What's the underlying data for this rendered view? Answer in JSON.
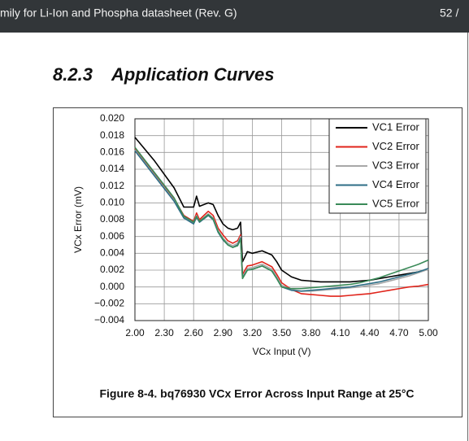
{
  "toolbar": {
    "title": "mily for Li-Ion and Phospha datasheet (Rev. G)",
    "page": "52 /"
  },
  "section": {
    "number": "8.2.3",
    "title": "Application Curves"
  },
  "chart_data": {
    "type": "line",
    "caption": "Figure 8-4. bq76930 VCx Error Across Input Range at 25°C",
    "xlabel": "VCx Input (V)",
    "ylabel": "VCx Error (mV)",
    "x": [
      2.0,
      2.2,
      2.4,
      2.5,
      2.6,
      2.63,
      2.66,
      2.75,
      2.8,
      2.85,
      2.9,
      2.95,
      3.0,
      3.05,
      3.08,
      3.1,
      3.15,
      3.2,
      3.3,
      3.4,
      3.45,
      3.5,
      3.6,
      3.7,
      3.8,
      3.9,
      4.0,
      4.1,
      4.2,
      4.3,
      4.4,
      4.5,
      4.6,
      4.7,
      4.8,
      4.9,
      5.0
    ],
    "series": [
      {
        "name": "VC1 Error",
        "color": "#000000",
        "values": [
          0.0178,
          0.015,
          0.0118,
          0.0095,
          0.0095,
          0.0108,
          0.0096,
          0.01,
          0.0098,
          0.0085,
          0.0075,
          0.007,
          0.0068,
          0.007,
          0.0077,
          0.003,
          0.0042,
          0.004,
          0.0043,
          0.0038,
          0.003,
          0.002,
          0.0012,
          0.0008,
          0.0007,
          0.0006,
          0.0006,
          0.0006,
          0.0006,
          0.0007,
          0.0008,
          0.001,
          0.0012,
          0.0014,
          0.0016,
          0.0018,
          0.0021
        ]
      },
      {
        "name": "VC2 Error",
        "color": "#e0241b",
        "values": [
          0.0165,
          0.0135,
          0.0105,
          0.0085,
          0.0078,
          0.0088,
          0.008,
          0.009,
          0.0085,
          0.007,
          0.0062,
          0.0055,
          0.0052,
          0.0055,
          0.0062,
          0.0015,
          0.0025,
          0.0026,
          0.003,
          0.0024,
          0.0015,
          0.0005,
          -0.0003,
          -0.0008,
          -0.0009,
          -0.001,
          -0.0011,
          -0.0011,
          -0.001,
          -0.0009,
          -0.0008,
          -0.0006,
          -0.0004,
          -0.0002,
          0.0,
          0.0001,
          0.0003
        ]
      },
      {
        "name": "VC3 Error",
        "color": "#a8a8a8",
        "values": [
          0.0163,
          0.0133,
          0.0103,
          0.0083,
          0.0076,
          0.0085,
          0.0078,
          0.0087,
          0.0082,
          0.0067,
          0.0058,
          0.0052,
          0.0049,
          0.0052,
          0.006,
          0.0012,
          0.0022,
          0.0023,
          0.0027,
          0.0021,
          0.0012,
          0.0002,
          -0.0003,
          -0.0005,
          -0.0005,
          -0.0004,
          -0.0003,
          -0.0002,
          -0.0001,
          0.0,
          0.0002,
          0.0004,
          0.0007,
          0.001,
          0.0013,
          0.0017,
          0.0021
        ]
      },
      {
        "name": "VC4 Error",
        "color": "#2e6e86",
        "values": [
          0.0162,
          0.0132,
          0.0102,
          0.0082,
          0.0075,
          0.0083,
          0.0077,
          0.0085,
          0.008,
          0.0065,
          0.0056,
          0.005,
          0.0047,
          0.005,
          0.0058,
          0.0011,
          0.002,
          0.0021,
          0.0025,
          0.0019,
          0.001,
          0.0,
          -0.0004,
          -0.0005,
          -0.0004,
          -0.0003,
          -0.0002,
          -0.0001,
          0.0,
          0.0002,
          0.0004,
          0.0006,
          0.0009,
          0.0012,
          0.0015,
          0.0018,
          0.0022
        ]
      },
      {
        "name": "VC5 Error",
        "color": "#3a8a58",
        "values": [
          0.0166,
          0.0136,
          0.0106,
          0.0084,
          0.0077,
          0.0084,
          0.0078,
          0.0086,
          0.0081,
          0.0066,
          0.0057,
          0.005,
          0.0047,
          0.0049,
          0.0057,
          0.001,
          0.002,
          0.0021,
          0.0025,
          0.0019,
          0.001,
          0.0,
          -0.0002,
          -0.0002,
          -0.0001,
          0.0,
          0.0001,
          0.0002,
          0.0003,
          0.0005,
          0.0008,
          0.0011,
          0.0015,
          0.0019,
          0.0023,
          0.0027,
          0.0032
        ]
      }
    ],
    "xlim": [
      2.0,
      5.0
    ],
    "xticks": [
      {
        "value": 2.0,
        "label": "2.00"
      },
      {
        "value": 2.3,
        "label": "2.30"
      },
      {
        "value": 2.6,
        "label": "2.60"
      },
      {
        "value": 2.9,
        "label": "2.90"
      },
      {
        "value": 3.2,
        "label": "3.20"
      },
      {
        "value": 3.5,
        "label": "3.50"
      },
      {
        "value": 3.8,
        "label": "3.80"
      },
      {
        "value": 4.1,
        "label": "4.10"
      },
      {
        "value": 4.4,
        "label": "4.40"
      },
      {
        "value": 4.7,
        "label": "4.70"
      },
      {
        "value": 5.0,
        "label": "5.00"
      }
    ],
    "ylim": [
      -0.004,
      0.02
    ],
    "yticks": [
      {
        "value": -0.004,
        "label": "−0.004"
      },
      {
        "value": -0.002,
        "label": "−0.002"
      },
      {
        "value": 0,
        "label": "0.000"
      },
      {
        "value": 0.002,
        "label": "0.002"
      },
      {
        "value": 0.004,
        "label": "0.004"
      },
      {
        "value": 0.006,
        "label": "0.006"
      },
      {
        "value": 0.008,
        "label": "0.008"
      },
      {
        "value": 0.01,
        "label": "0.010"
      },
      {
        "value": 0.012,
        "label": "0.012"
      },
      {
        "value": 0.014,
        "label": "0.014"
      },
      {
        "value": 0.016,
        "label": "0.016"
      },
      {
        "value": 0.018,
        "label": "0.018"
      },
      {
        "value": 0.02,
        "label": "0.020"
      }
    ],
    "grid": true,
    "legend": "upper right"
  }
}
